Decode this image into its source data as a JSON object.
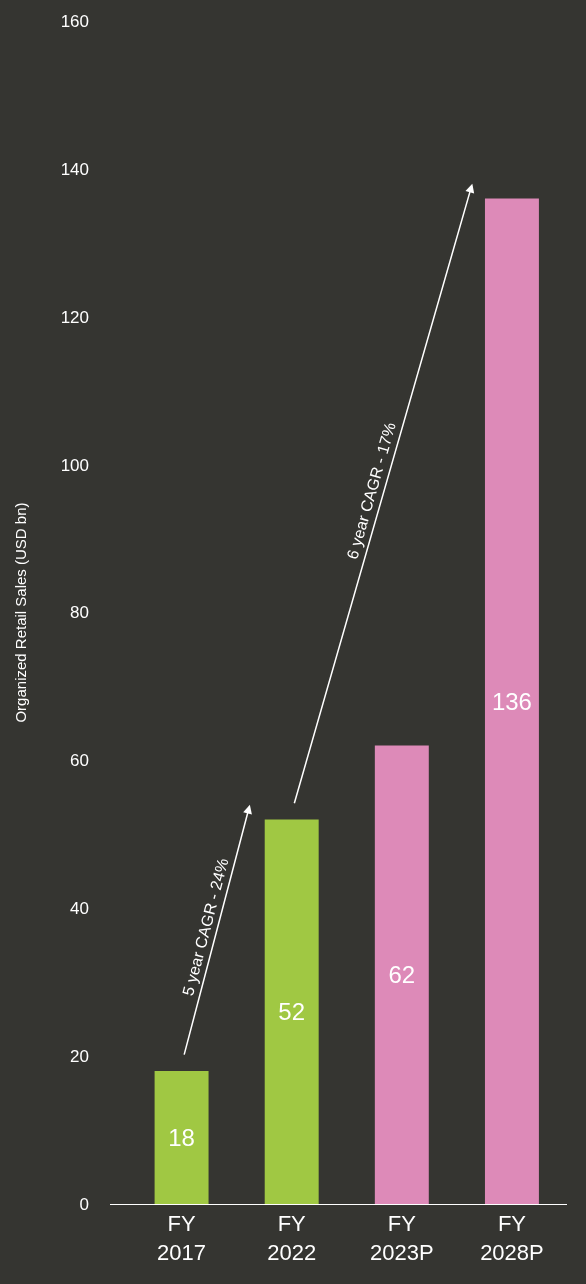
{
  "chart_data": {
    "type": "bar",
    "ylabel": "Organized Retail Sales (USD bn)",
    "categories": [
      "FY\n2017",
      "FY\n2022",
      "FY\n2023P",
      "FY\n2028P"
    ],
    "values": [
      18,
      52,
      62,
      136
    ],
    "colors": [
      "#a0c843",
      "#a0c843",
      "#dd8ab8",
      "#dd8ab8"
    ],
    "data_labels": true,
    "ylim": [
      0,
      160
    ],
    "yticks": [
      0,
      20,
      40,
      60,
      80,
      100,
      120,
      140,
      160
    ],
    "grid": false,
    "annotations": [
      "5 year CAGR - 24%",
      "6 year CAGR - 17%"
    ]
  }
}
